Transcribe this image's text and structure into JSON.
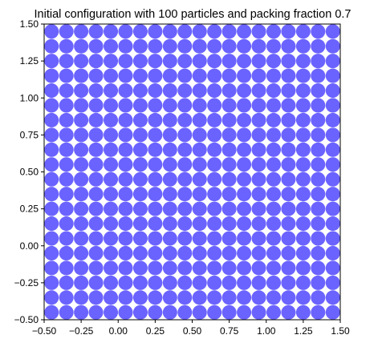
{
  "chart_data": {
    "type": "scatter",
    "title": "Initial configuration with 100 particles and packing fraction 0.7",
    "xlabel": "",
    "ylabel": "",
    "xlim": [
      -0.5,
      1.5
    ],
    "ylim": [
      -0.5,
      1.5
    ],
    "xticks": [
      "−0.50",
      "−0.25",
      "0.00",
      "0.25",
      "0.50",
      "0.75",
      "1.00",
      "1.25",
      "1.50"
    ],
    "yticks": [
      "−0.50",
      "−0.25",
      "0.00",
      "0.25",
      "0.50",
      "0.75",
      "1.00",
      "1.25",
      "1.50"
    ],
    "grid": false,
    "particle_color": "#6b63ff",
    "particle_radius": 0.049,
    "lattice": {
      "x_start": -0.45,
      "y_start": -0.45,
      "spacing": 0.1,
      "count_x": 20,
      "count_y": 20
    }
  }
}
